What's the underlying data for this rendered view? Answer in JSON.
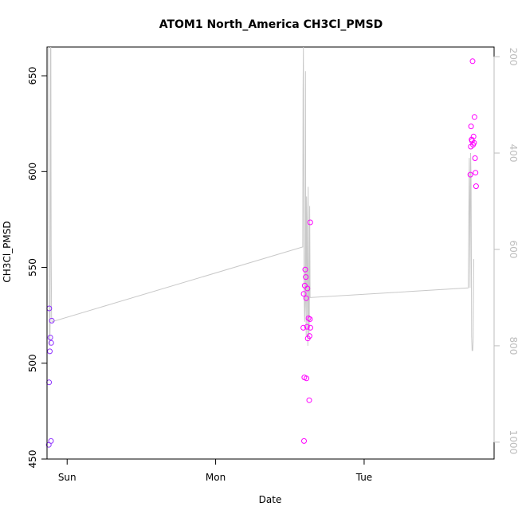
{
  "chart_data": {
    "type": "scatter",
    "title": "ATOM1 North_America CH3Cl_PMSD",
    "xlabel": "Date",
    "ylabel": "CH3Cl_PMSD",
    "x_axis": {
      "kind": "date",
      "range": [
        "Sat 20:45",
        "Tue 21:00"
      ],
      "ticks": [
        "Sun",
        "Mon",
        "Tue"
      ]
    },
    "y_left": {
      "range": [
        450,
        665
      ],
      "ticks": [
        450,
        500,
        550,
        600,
        650
      ]
    },
    "y_right": {
      "range": [
        1035,
        180
      ],
      "reversed": true,
      "ticks": [
        200,
        400,
        600,
        800,
        1000
      ],
      "unlabeled": true
    },
    "grid": false,
    "colors": {
      "points_low": "#7a3cff",
      "points_high": "#ff00ff",
      "line": "#c8c8c8"
    },
    "series": [
      {
        "marker": "open-circle",
        "points": [
          {
            "x": "Sat 21:02",
            "y": 457.4
          },
          {
            "x": "Sat 21:05",
            "y": 490.0
          },
          {
            "x": "Sat 21:07",
            "y": 528.6
          },
          {
            "x": "Sat 21:12",
            "y": 506.2
          },
          {
            "x": "Sat 21:17",
            "y": 513.4
          },
          {
            "x": "Sat 21:24",
            "y": 459.4
          },
          {
            "x": "Sat 21:26",
            "y": 510.6
          },
          {
            "x": "Sat 21:31",
            "y": 522.2
          },
          {
            "x": "Mon 14:10",
            "y": 518.5
          },
          {
            "x": "Mon 14:14",
            "y": 536.2
          },
          {
            "x": "Mon 14:17",
            "y": 459.4
          },
          {
            "x": "Mon 14:20",
            "y": 492.6
          },
          {
            "x": "Mon 14:24",
            "y": 540.5
          },
          {
            "x": "Mon 14:29",
            "y": 548.9
          },
          {
            "x": "Mon 14:34",
            "y": 545.0
          },
          {
            "x": "Mon 14:38",
            "y": 533.9
          },
          {
            "x": "Mon 14:41",
            "y": 492.1
          },
          {
            "x": "Mon 14:46",
            "y": 519.0
          },
          {
            "x": "Mon 14:50",
            "y": 539.0
          },
          {
            "x": "Mon 14:53",
            "y": 512.9
          },
          {
            "x": "Mon 15:00",
            "y": 523.5
          },
          {
            "x": "Mon 15:07",
            "y": 480.7
          },
          {
            "x": "Mon 15:10",
            "y": 514.2
          },
          {
            "x": "Mon 15:14",
            "y": 523.0
          },
          {
            "x": "Mon 15:17",
            "y": 573.5
          },
          {
            "x": "Mon 15:19",
            "y": 518.5
          },
          {
            "x": "Tue 17:10",
            "y": 598.4
          },
          {
            "x": "Tue 17:14",
            "y": 613.0
          },
          {
            "x": "Tue 17:17",
            "y": 623.6
          },
          {
            "x": "Tue 17:22",
            "y": 616.7
          },
          {
            "x": "Tue 17:26",
            "y": 616.0
          },
          {
            "x": "Tue 17:31",
            "y": 657.6
          },
          {
            "x": "Tue 17:36",
            "y": 614.0
          },
          {
            "x": "Tue 17:41",
            "y": 618.3
          },
          {
            "x": "Tue 17:46",
            "y": 615.0
          },
          {
            "x": "Tue 17:50",
            "y": 628.5
          },
          {
            "x": "Tue 17:55",
            "y": 607.0
          },
          {
            "x": "Tue 18:00",
            "y": 599.4
          },
          {
            "x": "Tue 18:05",
            "y": 592.4
          }
        ]
      },
      {
        "axis": "right",
        "line": [
          {
            "x": "Sat 21:00",
            "y": 180
          },
          {
            "x": "Sat 21:03",
            "y": 530
          },
          {
            "x": "Sat 21:05",
            "y": 620
          },
          {
            "x": "Sat 21:08",
            "y": 780
          },
          {
            "x": "Sat 21:12",
            "y": 800
          },
          {
            "x": "Sat 21:15",
            "y": 760
          },
          {
            "x": "Sat 21:19",
            "y": 180
          },
          {
            "x": "Sat 21:22",
            "y": 180
          },
          {
            "x": "Sat 21:25",
            "y": 600
          },
          {
            "x": "Sat 21:29",
            "y": 740
          },
          {
            "x": "Sat 21:34",
            "y": 750
          },
          {
            "x": "Mon 14:05",
            "y": 595
          },
          {
            "x": "Mon 14:08",
            "y": 270
          },
          {
            "x": "Mon 14:11",
            "y": 180
          },
          {
            "x": "Mon 14:14",
            "y": 430
          },
          {
            "x": "Mon 14:18",
            "y": 690
          },
          {
            "x": "Mon 14:23",
            "y": 750
          },
          {
            "x": "Mon 14:28",
            "y": 710
          },
          {
            "x": "Mon 14:31",
            "y": 230
          },
          {
            "x": "Mon 14:34",
            "y": 590
          },
          {
            "x": "Mon 14:38",
            "y": 780
          },
          {
            "x": "Mon 14:42",
            "y": 490
          },
          {
            "x": "Mon 14:46",
            "y": 540
          },
          {
            "x": "Mon 14:50",
            "y": 730
          },
          {
            "x": "Mon 14:54",
            "y": 800
          },
          {
            "x": "Mon 14:57",
            "y": 470
          },
          {
            "x": "Mon 15:00",
            "y": 620
          },
          {
            "x": "Mon 15:04",
            "y": 780
          },
          {
            "x": "Mon 15:08",
            "y": 760
          },
          {
            "x": "Mon 15:12",
            "y": 510
          },
          {
            "x": "Mon 15:16",
            "y": 700
          },
          {
            "x": "Tue 16:49",
            "y": 680
          },
          {
            "x": "Tue 17:00",
            "y": 410
          },
          {
            "x": "Tue 17:03",
            "y": 520
          },
          {
            "x": "Tue 17:07",
            "y": 680
          },
          {
            "x": "Tue 17:12",
            "y": 400
          },
          {
            "x": "Tue 17:17",
            "y": 450
          },
          {
            "x": "Tue 17:22",
            "y": 780
          },
          {
            "x": "Tue 17:27",
            "y": 810
          },
          {
            "x": "Tue 17:32",
            "y": 810
          },
          {
            "x": "Tue 17:37",
            "y": 790
          },
          {
            "x": "Tue 17:42",
            "y": 620
          }
        ]
      }
    ]
  }
}
